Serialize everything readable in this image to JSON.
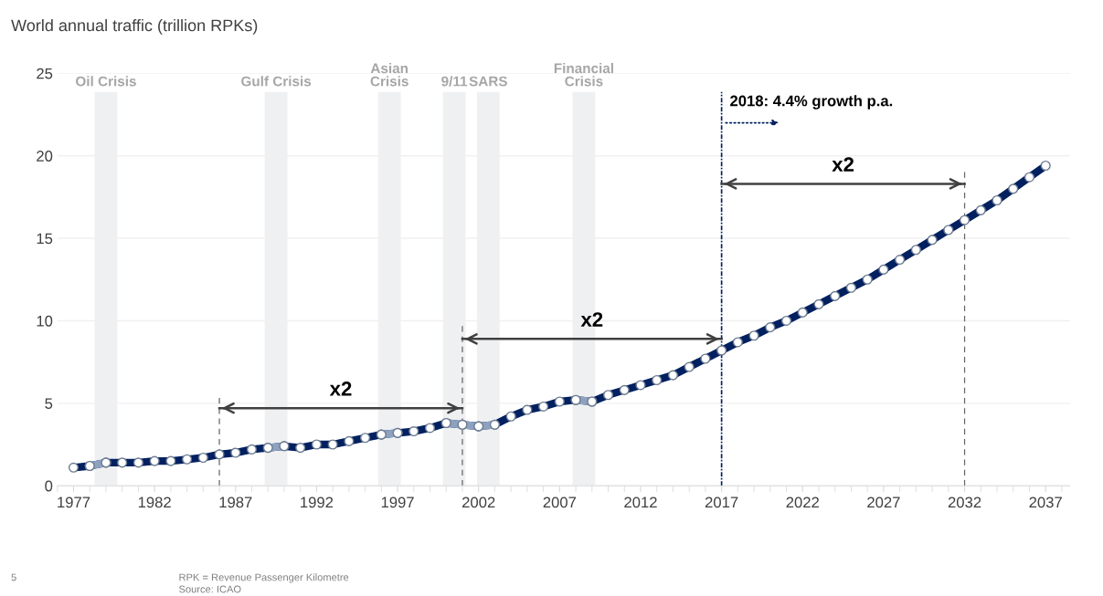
{
  "chart_data": {
    "type": "line",
    "title": "World annual traffic (trillion RPKs)",
    "x": [
      1977,
      1978,
      1979,
      1980,
      1981,
      1982,
      1983,
      1984,
      1985,
      1986,
      1987,
      1988,
      1989,
      1990,
      1991,
      1992,
      1993,
      1994,
      1995,
      1996,
      1997,
      1998,
      1999,
      2000,
      2001,
      2002,
      2003,
      2004,
      2005,
      2006,
      2007,
      2008,
      2009,
      2010,
      2011,
      2012,
      2013,
      2014,
      2015,
      2016,
      2017,
      2018,
      2019,
      2020,
      2021,
      2022,
      2023,
      2024,
      2025,
      2026,
      2027,
      2028,
      2029,
      2030,
      2031,
      2032,
      2033,
      2034,
      2035,
      2036,
      2037
    ],
    "series": [
      {
        "color": "#002060",
        "values": [
          1.1,
          1.2,
          1.4,
          1.4,
          1.4,
          1.5,
          1.5,
          1.6,
          1.7,
          1.9,
          2.0,
          2.2,
          2.3,
          2.4,
          2.3,
          2.5,
          2.5,
          2.7,
          2.9,
          3.1,
          3.2,
          3.3,
          3.5,
          3.8,
          3.7,
          3.6,
          3.7,
          4.2,
          4.6,
          4.8,
          5.1,
          5.2,
          5.1,
          5.5,
          5.8,
          6.1,
          6.4,
          6.7,
          7.2,
          7.7,
          8.2,
          8.7,
          9.1,
          9.6,
          10.0,
          10.5,
          11.0,
          11.5,
          12.0,
          12.5,
          13.1,
          13.7,
          14.3,
          14.9,
          15.5,
          16.1,
          16.7,
          17.3,
          18.0,
          18.7,
          19.4
        ]
      },
      {
        "type": "line",
        "color": "#404040",
        "x": [
          1986,
          2001
        ],
        "values": [
          4.7,
          4.7
        ],
        "marker": "none"
      },
      {
        "type": "line",
        "color": "#404040",
        "x": [
          2001,
          2017
        ],
        "values": [
          8.9,
          8.9
        ],
        "marker": "none"
      },
      {
        "type": "line",
        "color": "#404040",
        "x": [
          2017,
          2032
        ],
        "values": [
          18.3,
          18.3
        ],
        "marker": "none"
      },
      {
        "color": "#8ea2bf",
        "values": [
          null,
          1.2,
          1.4,
          null,
          null,
          null,
          null,
          null,
          null,
          null,
          null,
          null,
          2.3,
          2.4,
          null,
          null,
          null,
          null,
          null,
          3.1,
          3.2,
          null,
          null,
          3.8,
          3.7,
          3.6,
          3.7,
          null,
          null,
          null,
          null,
          5.2,
          5.1,
          null,
          null,
          null,
          null,
          null,
          null,
          null,
          null,
          null,
          null,
          null,
          null,
          null,
          null,
          null,
          null,
          null,
          null,
          null,
          null,
          null,
          null,
          null,
          null,
          null,
          null,
          null,
          null
        ]
      }
    ],
    "marker": "circle",
    "line_style": "solid",
    "xlim": [
      1976,
      2038.5
    ],
    "xticks": [
      1977,
      1982,
      1987,
      1992,
      1997,
      2002,
      2007,
      2012,
      2017,
      2022,
      2027,
      2032,
      2037
    ],
    "ylim": [
      0,
      25
    ],
    "yticks": [
      0,
      5,
      10,
      15,
      20,
      25
    ],
    "grid": "y",
    "bands": [
      {
        "axis": "x",
        "from": 1978.3,
        "to": 1979.7,
        "label": "Oil Crisis",
        "color": "#eff0f2"
      },
      {
        "axis": "x",
        "from": 1988.8,
        "to": 1990.2,
        "label": "Gulf Crisis",
        "color": "#eff0f2"
      },
      {
        "axis": "x",
        "from": 1995.8,
        "to": 1997.2,
        "label": "Asian\nCrisis",
        "color": "#eff0f2"
      },
      {
        "axis": "x",
        "from": 1999.8,
        "to": 2001.2,
        "label": "9/11",
        "color": "#eff0f2"
      },
      {
        "axis": "x",
        "from": 2001.9,
        "to": 2003.3,
        "label": "SARS",
        "color": "#eff0f2"
      },
      {
        "axis": "x",
        "from": 2007.8,
        "to": 2009.2,
        "label": "Financial\nCrisis",
        "color": "#eff0f2"
      }
    ],
    "ref_lines": [
      {
        "axis": "x",
        "value": 1986,
        "color": "#666666",
        "line_style": "dashed"
      },
      {
        "axis": "x",
        "value": 2001,
        "color": "#666666",
        "line_style": "dashed"
      },
      {
        "axis": "x",
        "value": 2017,
        "color": "#002060",
        "line_style": "dotted"
      },
      {
        "axis": "x",
        "value": 2032,
        "color": "#666666",
        "line_style": "dashed"
      }
    ],
    "annotations": [
      {
        "text": "x2",
        "x": 1993.5,
        "y": 4.7
      },
      {
        "text": "x2",
        "x": 2009,
        "y": 8.9
      },
      {
        "text": "x2",
        "x": 2024.5,
        "y": 18.3
      },
      "2018: 4.4% growth p.a.",
      "5",
      "RPK = Revenue Passenger Kilometre",
      "Source: ICAO"
    ]
  }
}
